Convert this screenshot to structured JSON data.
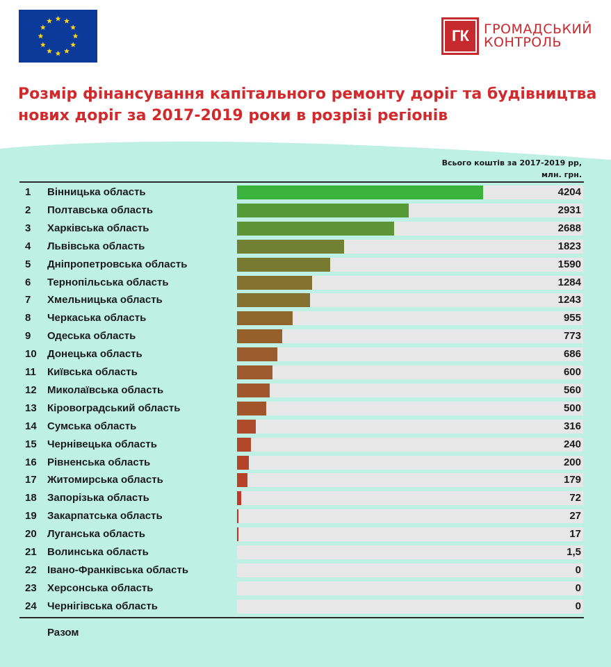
{
  "logo": {
    "abbr": "ГК",
    "line1": "ГРОМАДСЬКИЙ",
    "line2": "КОНТРОЛЬ"
  },
  "title": "Розмір фінансування капітального ремонту доріг та будівництва нових доріг за 2017-2019 роки в розрізі регіонів",
  "column_header": {
    "line1": "Всього коштів за 2017-2019 рр,",
    "line2": "млн. грн."
  },
  "total_label": "Разом",
  "colors": {
    "title": "#d12a2d",
    "background": "#bff0e4",
    "track": "#e7e7e7",
    "bar_high": "#3bb23b",
    "bar_low": "#d12a24",
    "eu_blue": "#0c3a9a",
    "eu_star": "#ffd617"
  },
  "icons": {
    "flag": "eu-flag-icon",
    "logo": "gk-logo-icon"
  },
  "chart_data": {
    "type": "bar",
    "orientation": "horizontal",
    "title": "Розмір фінансування капітального ремонту доріг та будівництва нових доріг за 2017-2019 роки в розрізі регіонів",
    "value_header": "Всього коштів за 2017-2019 рр, млн. грн.",
    "xlim": [
      0,
      4204
    ],
    "ranks": [
      "1",
      "2",
      "3",
      "4",
      "5",
      "6",
      "7",
      "8",
      "9",
      "10",
      "11",
      "12",
      "13",
      "14",
      "15",
      "16",
      "17",
      "18",
      "19",
      "20",
      "21",
      "22",
      "23",
      "24"
    ],
    "categories": [
      "Вінницька область",
      "Полтавська область",
      "Харківська область",
      "Львівська область",
      "Дніпропетровська область",
      "Тернопільська область",
      "Хмельницька область",
      "Черкаська область",
      "Одеська область",
      "Донецька область",
      "Київська область",
      "Миколаївська область",
      "Кіровоградський область",
      "Сумська область",
      "Чернівецька область",
      "Рівненська область",
      "Житомирська область",
      "Запорізька область",
      "Закарпатська область",
      "Луганська область",
      "Волинська область",
      "Івано-Франківська область",
      "Херсонська область",
      "Чернігівська область"
    ],
    "values": [
      4204,
      2931,
      2688,
      1823,
      1590,
      1284,
      1243,
      955,
      773,
      686,
      600,
      560,
      500,
      316,
      240,
      200,
      179,
      72,
      27,
      17,
      1.5,
      0,
      0,
      0
    ],
    "value_labels": [
      "4204",
      "2931",
      "2688",
      "1823",
      "1590",
      "1284",
      "1243",
      "955",
      "773",
      "686",
      "600",
      "560",
      "500",
      "316",
      "240",
      "200",
      "179",
      "72",
      "27",
      "17",
      "1,5",
      "0",
      "0",
      "0"
    ]
  }
}
